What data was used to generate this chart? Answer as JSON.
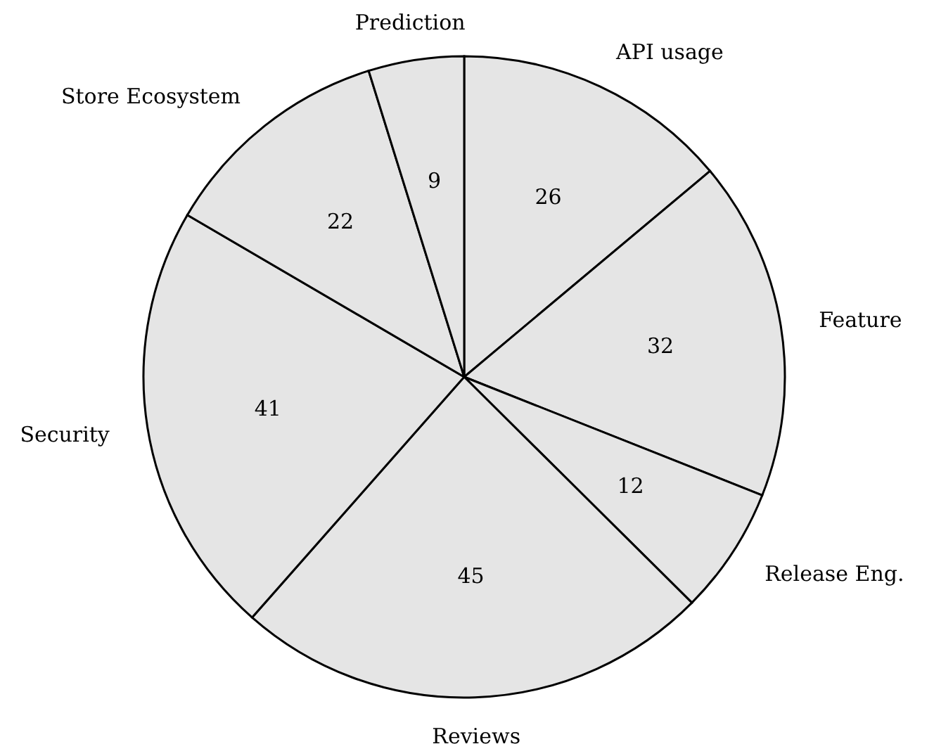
{
  "chart_data": {
    "type": "pie",
    "categories": [
      "API usage",
      "Feature",
      "Release Eng.",
      "Reviews",
      "Security",
      "Store Ecosystem",
      "Prediction"
    ],
    "values": [
      26,
      32,
      12,
      45,
      41,
      22,
      9
    ],
    "colors": [
      "#e5e5e5",
      "#e5e5e5",
      "#e5e5e5",
      "#e5e5e5",
      "#e5e5e5",
      "#e5e5e5",
      "#e5e5e5"
    ],
    "data_labels": true
  }
}
